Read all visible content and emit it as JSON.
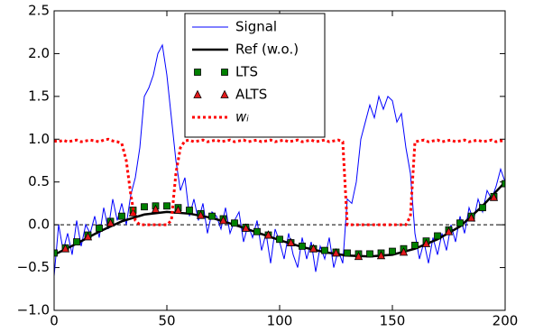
{
  "chart_data": {
    "type": "line",
    "xlim": [
      0,
      200
    ],
    "xticks": [
      0,
      50,
      100,
      150,
      200
    ],
    "ylim": [
      -1.0,
      2.5
    ],
    "yticks": [
      {
        "value": -1.0,
        "label": "−1.0"
      },
      {
        "value": -0.5,
        "label": "−0.5"
      },
      {
        "value": 0.0,
        "label": "0.0"
      },
      {
        "value": 0.5,
        "label": "0.5"
      },
      {
        "value": 1.0,
        "label": "1.0"
      },
      {
        "value": 1.5,
        "label": "1.5"
      },
      {
        "value": 2.0,
        "label": "2.0"
      },
      {
        "value": 2.5,
        "label": "2.5"
      }
    ],
    "hlines": [
      0
    ],
    "legend": "upper center",
    "series": [
      {
        "name": "Signal",
        "color": "#0000ff",
        "style": "line",
        "x": [
          0,
          2,
          4,
          6,
          8,
          10,
          12,
          14,
          16,
          18,
          20,
          22,
          24,
          26,
          28,
          30,
          32,
          34,
          36,
          38,
          40,
          42,
          44,
          46,
          48,
          50,
          52,
          54,
          56,
          58,
          60,
          62,
          64,
          66,
          68,
          70,
          72,
          74,
          76,
          78,
          80,
          82,
          84,
          86,
          88,
          90,
          92,
          94,
          96,
          98,
          100,
          102,
          104,
          106,
          108,
          110,
          112,
          114,
          116,
          118,
          120,
          122,
          124,
          126,
          128,
          130,
          132,
          134,
          136,
          138,
          140,
          142,
          144,
          146,
          148,
          150,
          152,
          154,
          156,
          158,
          160,
          162,
          164,
          166,
          168,
          170,
          172,
          174,
          176,
          178,
          180,
          182,
          184,
          186,
          188,
          190,
          192,
          194,
          196,
          198,
          200
        ],
        "values": [
          -0.6,
          0.0,
          -0.3,
          -0.1,
          -0.35,
          0.05,
          -0.25,
          0.0,
          -0.1,
          0.1,
          -0.15,
          0.2,
          -0.05,
          0.3,
          0.05,
          0.25,
          0.0,
          0.35,
          0.55,
          0.9,
          1.5,
          1.6,
          1.75,
          2.0,
          2.1,
          1.75,
          1.25,
          0.75,
          0.4,
          0.55,
          0.1,
          0.3,
          0.05,
          0.25,
          -0.1,
          0.15,
          0.1,
          -0.05,
          0.2,
          -0.1,
          0.05,
          0.15,
          -0.2,
          0.0,
          -0.15,
          0.05,
          -0.3,
          -0.1,
          -0.45,
          -0.05,
          -0.2,
          -0.4,
          -0.1,
          -0.35,
          -0.5,
          -0.15,
          -0.4,
          -0.2,
          -0.55,
          -0.25,
          -0.4,
          -0.15,
          -0.5,
          -0.3,
          -0.45,
          0.3,
          0.25,
          0.5,
          1.0,
          1.2,
          1.4,
          1.25,
          1.5,
          1.35,
          1.5,
          1.45,
          1.2,
          1.3,
          0.9,
          0.6,
          -0.1,
          -0.4,
          -0.2,
          -0.45,
          -0.15,
          -0.35,
          -0.1,
          -0.3,
          0.0,
          -0.2,
          0.1,
          -0.1,
          0.2,
          0.05,
          0.3,
          0.15,
          0.4,
          0.3,
          0.45,
          0.65,
          0.5
        ]
      },
      {
        "name": "Ref (w.o.)",
        "color": "#000000",
        "style": "thick",
        "x": [
          0,
          10,
          20,
          30,
          40,
          50,
          60,
          70,
          80,
          90,
          100,
          110,
          120,
          130,
          140,
          150,
          160,
          170,
          180,
          190,
          200
        ],
        "values": [
          -0.35,
          -0.22,
          -0.08,
          0.04,
          0.12,
          0.15,
          0.13,
          0.08,
          0.0,
          -0.09,
          -0.18,
          -0.26,
          -0.32,
          -0.36,
          -0.37,
          -0.35,
          -0.28,
          -0.17,
          -0.02,
          0.22,
          0.5
        ]
      },
      {
        "name": "LTS",
        "color": "#008000",
        "style": "square",
        "x": [
          0,
          5,
          10,
          15,
          20,
          25,
          30,
          35,
          40,
          45,
          50,
          55,
          60,
          65,
          70,
          75,
          80,
          85,
          90,
          95,
          100,
          105,
          110,
          115,
          120,
          125,
          130,
          135,
          140,
          145,
          150,
          155,
          160,
          165,
          170,
          175,
          180,
          185,
          190,
          195,
          200
        ],
        "values": [
          -0.33,
          -0.27,
          -0.2,
          -0.12,
          -0.04,
          0.04,
          0.1,
          0.17,
          0.21,
          0.22,
          0.22,
          0.2,
          0.17,
          0.13,
          0.1,
          0.07,
          0.02,
          -0.03,
          -0.08,
          -0.12,
          -0.17,
          -0.21,
          -0.25,
          -0.28,
          -0.3,
          -0.32,
          -0.33,
          -0.34,
          -0.34,
          -0.33,
          -0.31,
          -0.28,
          -0.24,
          -0.19,
          -0.13,
          -0.06,
          0.02,
          0.1,
          0.2,
          0.33,
          0.48
        ]
      },
      {
        "name": "ALTS",
        "color": "#e31a1c",
        "style": "triangle",
        "x": [
          5,
          15,
          25,
          35,
          45,
          55,
          65,
          75,
          85,
          95,
          105,
          115,
          125,
          135,
          145,
          155,
          165,
          175,
          185,
          195
        ],
        "values": [
          -0.28,
          -0.14,
          0.02,
          0.14,
          0.18,
          0.17,
          0.11,
          0.05,
          -0.04,
          -0.12,
          -0.21,
          -0.28,
          -0.33,
          -0.37,
          -0.36,
          -0.32,
          -0.22,
          -0.08,
          0.08,
          0.32
        ]
      },
      {
        "name": "wᵢ",
        "color": "#ff0000",
        "style": "dotted",
        "x": [
          0,
          2,
          4,
          6,
          8,
          10,
          12,
          14,
          16,
          18,
          20,
          22,
          24,
          26,
          28,
          30,
          32,
          34,
          36,
          38,
          40,
          42,
          44,
          46,
          48,
          50,
          52,
          54,
          56,
          58,
          60,
          62,
          64,
          66,
          68,
          70,
          72,
          74,
          76,
          78,
          80,
          82,
          84,
          86,
          88,
          90,
          92,
          94,
          96,
          98,
          100,
          102,
          104,
          106,
          108,
          110,
          112,
          114,
          116,
          118,
          120,
          122,
          124,
          126,
          128,
          130,
          132,
          134,
          136,
          138,
          140,
          142,
          144,
          146,
          148,
          150,
          152,
          154,
          156,
          158,
          160,
          162,
          164,
          166,
          168,
          170,
          172,
          174,
          176,
          178,
          180,
          182,
          184,
          186,
          188,
          190,
          192,
          194,
          196,
          198,
          200
        ],
        "values": [
          0.98,
          0.97,
          0.99,
          0.97,
          0.98,
          0.99,
          0.97,
          0.98,
          0.99,
          0.98,
          0.97,
          0.99,
          1.0,
          0.98,
          0.97,
          0.95,
          0.75,
          0.35,
          0.05,
          0,
          0,
          0,
          0,
          0,
          0,
          0,
          0.05,
          0.6,
          0.9,
          0.98,
          0.99,
          0.97,
          0.98,
          0.99,
          0.97,
          0.98,
          0.99,
          0.97,
          0.98,
          0.99,
          0.97,
          0.98,
          0.99,
          0.97,
          0.98,
          0.99,
          0.97,
          0.98,
          0.99,
          0.97,
          0.98,
          0.99,
          0.97,
          0.98,
          0.99,
          0.97,
          0.98,
          0.99,
          0.97,
          0.98,
          0.99,
          0.97,
          0.98,
          0.99,
          0.97,
          0,
          0,
          0,
          0,
          0,
          0,
          0,
          0,
          0,
          0,
          0,
          0,
          0,
          0,
          0.1,
          0.97,
          0.98,
          0.99,
          0.97,
          0.98,
          0.99,
          0.97,
          0.98,
          0.99,
          0.97,
          0.98,
          0.99,
          0.97,
          0.98,
          0.99,
          0.97,
          0.98,
          0.99,
          0.97,
          0.98,
          0.98
        ]
      }
    ]
  }
}
